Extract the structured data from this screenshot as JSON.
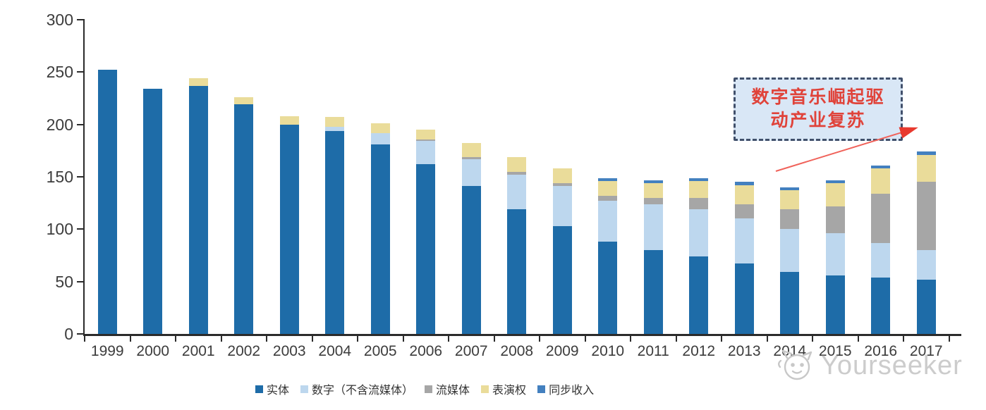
{
  "chart_data": {
    "type": "bar",
    "stacked": true,
    "title": "",
    "xlabel": "",
    "ylabel": "",
    "categories": [
      "1999",
      "2000",
      "2001",
      "2002",
      "2003",
      "2004",
      "2005",
      "2006",
      "2007",
      "2008",
      "2009",
      "2010",
      "2011",
      "2012",
      "2013",
      "2014",
      "2015",
      "2016",
      "2017"
    ],
    "series": [
      {
        "name": "实体",
        "color": "#1E6CA8",
        "values": [
          252,
          234,
          237,
          219,
          200,
          194,
          181,
          162,
          141,
          119,
          103,
          88,
          80,
          74,
          67,
          59,
          56,
          54,
          52
        ]
      },
      {
        "name": "数字（不含流媒体）",
        "color": "#BDD7EE",
        "values": [
          0,
          0,
          0,
          0,
          0,
          4,
          11,
          22,
          26,
          33,
          38,
          39,
          44,
          45,
          43,
          41,
          40,
          33,
          28
        ]
      },
      {
        "name": "流媒体",
        "color": "#A6A6A6",
        "values": [
          0,
          0,
          0,
          0,
          0,
          0,
          0,
          2,
          2,
          3,
          3,
          5,
          6,
          11,
          14,
          19,
          26,
          47,
          65
        ]
      },
      {
        "name": "表演权",
        "color": "#EADC9A",
        "values": [
          0,
          0,
          7,
          7,
          8,
          9,
          9,
          9,
          13,
          14,
          14,
          14,
          14,
          16,
          18,
          18,
          22,
          24,
          26
        ]
      },
      {
        "name": "同步收入",
        "color": "#4380BF",
        "values": [
          0,
          0,
          0,
          0,
          0,
          0,
          0,
          0,
          0,
          0,
          0,
          3,
          3,
          3,
          3,
          3,
          3,
          3,
          3
        ]
      }
    ],
    "ylim": [
      0,
      300
    ],
    "yticks": [
      0,
      50,
      100,
      150,
      200,
      250,
      300
    ],
    "grid": false,
    "legend_position": "bottom"
  },
  "annotation": {
    "line1": "数字音乐崛起驱",
    "line2": "动产业复苏",
    "full_text": "数字音乐崛起驱动产业复苏",
    "text_color": "#E0433A",
    "box_fill": "#D9E7F6",
    "box_border": "#41506B",
    "arrow_color": "#E8392E"
  },
  "watermark": {
    "text": "Yourseeker"
  }
}
